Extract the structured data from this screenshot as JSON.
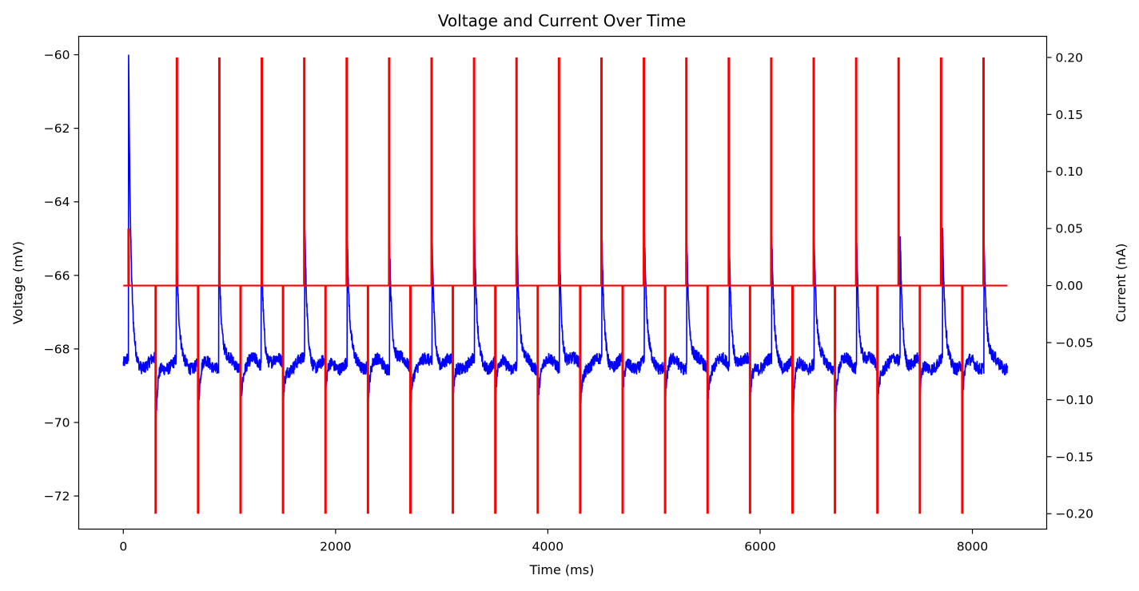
{
  "chart_data": {
    "type": "line",
    "title": "Voltage and Current Over Time",
    "xlabel": "Time (ms)",
    "ylabel_left": "Voltage (mV)",
    "ylabel_right": "Current (nA)",
    "xlim": [
      -420,
      8700
    ],
    "ylim_left": [
      -72.9,
      -59.5
    ],
    "ylim_right": [
      -0.2135,
      0.2185
    ],
    "x_ticks": [
      0,
      2000,
      4000,
      6000,
      8000
    ],
    "x_tick_labels": [
      "0",
      "2000",
      "4000",
      "6000",
      "8000"
    ],
    "y_left_ticks": [
      -60,
      -62,
      -64,
      -66,
      -68,
      -70,
      -72
    ],
    "y_left_tick_labels": [
      "−60",
      "−62",
      "−64",
      "−66",
      "−68",
      "−70",
      "−72"
    ],
    "y_right_ticks": [
      0.2,
      0.15,
      0.1,
      0.05,
      0.0,
      -0.05,
      -0.1,
      -0.15,
      -0.2
    ],
    "y_right_tick_labels": [
      "0.20",
      "0.15",
      "0.10",
      "0.05",
      "0.00",
      "−0.05",
      "−0.10",
      "−0.15",
      "−0.20"
    ],
    "grid": false,
    "colors": {
      "voltage": "#0000ff",
      "current": "#ff0000"
    },
    "series": [
      {
        "axis": "left",
        "baseline": -68.4,
        "x_range": [
          0,
          8330
        ],
        "peaks": [
          {
            "x": 50,
            "y": -60.1
          },
          {
            "x": 500,
            "y": -65.0
          },
          {
            "x": 900,
            "y": -64.8
          },
          {
            "x": 1300,
            "y": -64.7
          },
          {
            "x": 1710,
            "y": -64.7
          },
          {
            "x": 2110,
            "y": -65.0
          },
          {
            "x": 2510,
            "y": -65.0
          },
          {
            "x": 2910,
            "y": -65.0
          },
          {
            "x": 3310,
            "y": -65.0
          },
          {
            "x": 3710,
            "y": -65.0
          },
          {
            "x": 4110,
            "y": -65.0
          },
          {
            "x": 4510,
            "y": -65.0
          },
          {
            "x": 4910,
            "y": -64.9
          },
          {
            "x": 5310,
            "y": -64.9
          },
          {
            "x": 5710,
            "y": -65.0
          },
          {
            "x": 6110,
            "y": -65.0
          },
          {
            "x": 6510,
            "y": -65.0
          },
          {
            "x": 6910,
            "y": -65.0
          },
          {
            "x": 7320,
            "y": -64.9
          },
          {
            "x": 7720,
            "y": -64.9
          },
          {
            "x": 8110,
            "y": -64.9
          }
        ],
        "troughs": [
          {
            "x": 305,
            "y": -70.4
          },
          {
            "x": 705,
            "y": -70.0
          },
          {
            "x": 1105,
            "y": -69.5
          },
          {
            "x": 1505,
            "y": -69.5
          },
          {
            "x": 1905,
            "y": -69.5
          },
          {
            "x": 2305,
            "y": -69.5
          },
          {
            "x": 2705,
            "y": -69.5
          },
          {
            "x": 3105,
            "y": -69.5
          },
          {
            "x": 3505,
            "y": -69.5
          },
          {
            "x": 3905,
            "y": -69.5
          },
          {
            "x": 4305,
            "y": -69.7
          },
          {
            "x": 4705,
            "y": -69.5
          },
          {
            "x": 5105,
            "y": -69.5
          },
          {
            "x": 5505,
            "y": -69.5
          },
          {
            "x": 5905,
            "y": -69.5
          },
          {
            "x": 6305,
            "y": -70.4
          },
          {
            "x": 6705,
            "y": -69.8
          },
          {
            "x": 7105,
            "y": -69.5
          },
          {
            "x": 7505,
            "y": -69.5
          },
          {
            "x": 7905,
            "y": -69.5
          }
        ]
      },
      {
        "axis": "right",
        "baseline": 0.0,
        "x_range": [
          0,
          8330
        ],
        "positive_pulses": [
          {
            "x": 50,
            "y": 0.05
          },
          {
            "x": 505,
            "y": 0.2
          },
          {
            "x": 905,
            "y": 0.2
          },
          {
            "x": 1305,
            "y": 0.2
          },
          {
            "x": 1705,
            "y": 0.2
          },
          {
            "x": 2105,
            "y": 0.2
          },
          {
            "x": 2505,
            "y": 0.2
          },
          {
            "x": 2905,
            "y": 0.2
          },
          {
            "x": 3305,
            "y": 0.2
          },
          {
            "x": 3705,
            "y": 0.2
          },
          {
            "x": 4105,
            "y": 0.2
          },
          {
            "x": 4505,
            "y": 0.2
          },
          {
            "x": 4905,
            "y": 0.2
          },
          {
            "x": 5305,
            "y": 0.2
          },
          {
            "x": 5705,
            "y": 0.2
          },
          {
            "x": 6105,
            "y": 0.2
          },
          {
            "x": 6505,
            "y": 0.2
          },
          {
            "x": 6905,
            "y": 0.2
          },
          {
            "x": 7305,
            "y": 0.2
          },
          {
            "x": 7705,
            "y": 0.2
          },
          {
            "x": 8105,
            "y": 0.2
          }
        ],
        "negative_pulses": [
          {
            "x": 305,
            "y": -0.2
          },
          {
            "x": 705,
            "y": -0.2
          },
          {
            "x": 1105,
            "y": -0.2
          },
          {
            "x": 1505,
            "y": -0.2
          },
          {
            "x": 1905,
            "y": -0.2
          },
          {
            "x": 2305,
            "y": -0.2
          },
          {
            "x": 2705,
            "y": -0.2
          },
          {
            "x": 3105,
            "y": -0.2
          },
          {
            "x": 3505,
            "y": -0.2
          },
          {
            "x": 3905,
            "y": -0.2
          },
          {
            "x": 4305,
            "y": -0.2
          },
          {
            "x": 4705,
            "y": -0.2
          },
          {
            "x": 5105,
            "y": -0.2
          },
          {
            "x": 5505,
            "y": -0.2
          },
          {
            "x": 5905,
            "y": -0.2
          },
          {
            "x": 6305,
            "y": -0.2
          },
          {
            "x": 6705,
            "y": -0.2
          },
          {
            "x": 7105,
            "y": -0.2
          },
          {
            "x": 7505,
            "y": -0.2
          },
          {
            "x": 7905,
            "y": -0.2
          }
        ]
      }
    ]
  }
}
